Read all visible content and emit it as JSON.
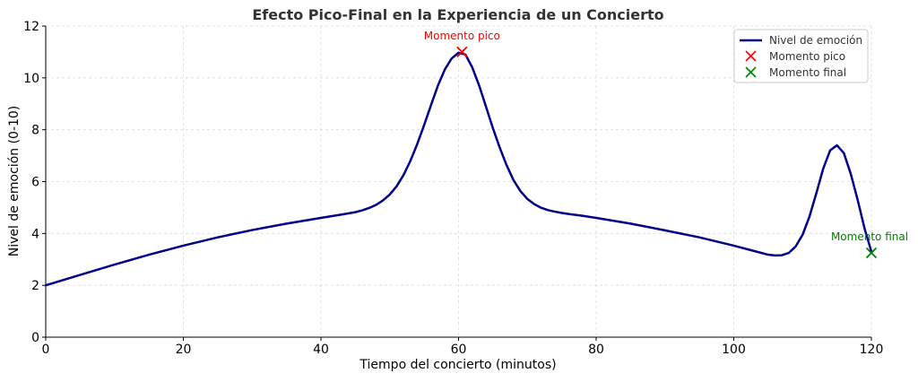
{
  "chart_data": {
    "type": "line",
    "title": "Efecto Pico-Final en la Experiencia de un Concierto",
    "xlabel": "Tiempo del concierto (minutos)",
    "ylabel": "Nivel de emoción (0-10)",
    "xlim": [
      0,
      120
    ],
    "ylim": [
      0,
      12
    ],
    "xticks": [
      0,
      20,
      40,
      60,
      80,
      100,
      120
    ],
    "yticks": [
      0,
      2,
      4,
      6,
      8,
      10,
      12
    ],
    "grid": true,
    "legend_position": "top-right",
    "colors": {
      "line": "#00008b",
      "peak": "#ff0000",
      "end": "#008000"
    },
    "series": [
      {
        "name": "Nivel de emoción",
        "x": [
          0,
          5,
          10,
          15,
          20,
          25,
          30,
          35,
          40,
          43,
          45,
          46,
          47,
          48,
          49,
          50,
          51,
          52,
          53,
          54,
          55,
          56,
          57,
          58,
          59,
          60,
          61,
          62,
          63,
          64,
          65,
          66,
          67,
          68,
          69,
          70,
          71,
          72,
          73,
          74,
          75,
          76,
          78,
          80,
          85,
          90,
          95,
          100,
          103,
          105,
          106,
          107,
          108,
          109,
          110,
          111,
          112,
          113,
          114,
          115,
          116,
          117,
          118,
          119,
          120
        ],
        "y": [
          2.0,
          2.4,
          2.8,
          3.18,
          3.53,
          3.85,
          4.13,
          4.38,
          4.6,
          4.73,
          4.82,
          4.89,
          4.98,
          5.1,
          5.27,
          5.5,
          5.82,
          6.25,
          6.8,
          7.45,
          8.18,
          8.95,
          9.7,
          10.32,
          10.75,
          10.97,
          10.9,
          10.4,
          9.7,
          8.88,
          8.05,
          7.3,
          6.62,
          6.05,
          5.63,
          5.33,
          5.13,
          4.99,
          4.9,
          4.84,
          4.79,
          4.75,
          4.68,
          4.6,
          4.38,
          4.12,
          3.85,
          3.53,
          3.32,
          3.18,
          3.15,
          3.16,
          3.25,
          3.5,
          3.95,
          4.65,
          5.55,
          6.5,
          7.2,
          7.4,
          7.1,
          6.3,
          5.3,
          4.2,
          3.3
        ]
      }
    ],
    "markers": [
      {
        "name": "Momento pico",
        "x": 60.5,
        "y": 11.0,
        "label": "Momento pico",
        "color": "#ff0000"
      },
      {
        "name": "Momento final",
        "x": 120,
        "y": 3.25,
        "label": "Momento final",
        "color": "#008000"
      }
    ]
  }
}
